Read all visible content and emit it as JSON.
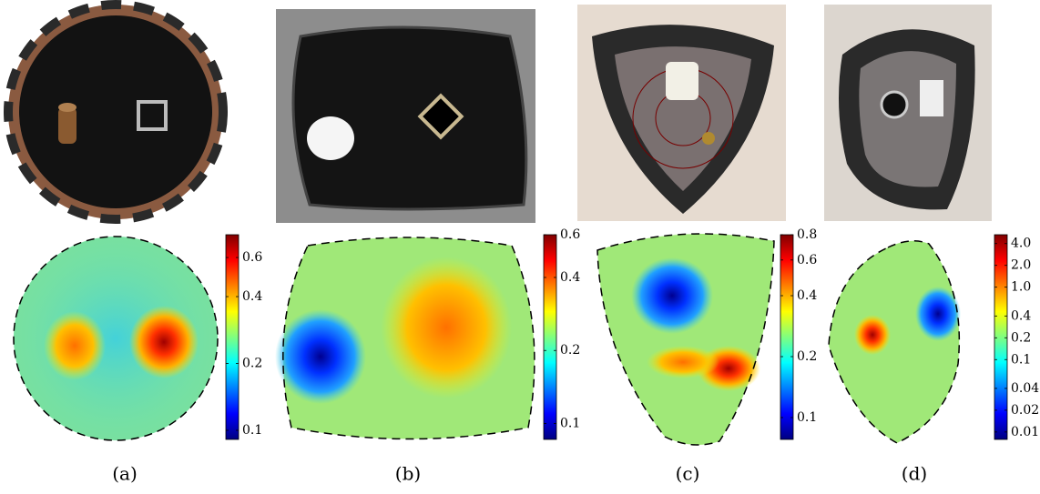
{
  "panels": [
    {
      "label": "(a)",
      "colorbar": {
        "scale": "log",
        "lim": [
          0.091,
          0.76
        ],
        "ticks": [
          0.6,
          0.4,
          0.2,
          0.1
        ]
      }
    },
    {
      "label": "(b)",
      "colorbar": {
        "scale": "log",
        "lim": [
          0.086,
          0.6
        ],
        "ticks": [
          0.6,
          0.4,
          0.2,
          0.1
        ]
      }
    },
    {
      "label": "(c)",
      "colorbar": {
        "scale": "log",
        "lim": [
          0.078,
          0.8
        ],
        "ticks": [
          0.8,
          0.6,
          0.4,
          0.2,
          0.1
        ]
      }
    },
    {
      "label": "(d)",
      "colorbar": {
        "scale": "log",
        "lim": [
          0.0079,
          5.3
        ],
        "ticks": [
          {
            "value": 4,
            "label": "4.0"
          },
          {
            "value": 2,
            "label": "2.0"
          },
          {
            "value": 1,
            "label": "1.0"
          },
          0.4,
          0.2,
          0.1,
          0.04,
          0.02,
          0.01
        ]
      }
    }
  ]
}
